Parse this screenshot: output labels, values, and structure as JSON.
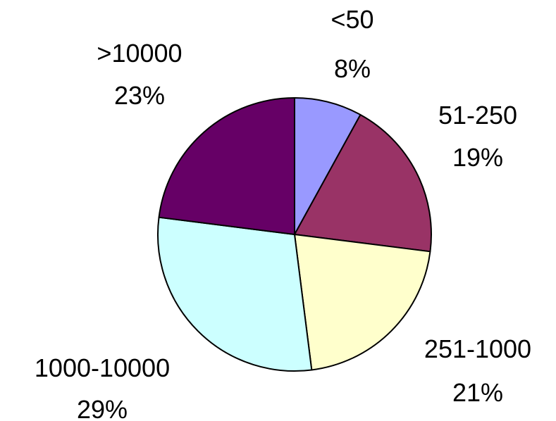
{
  "chart_data": {
    "type": "pie",
    "title": "",
    "slices": [
      {
        "category": "<50",
        "percent_label": "8%",
        "value": 8,
        "color": "#9999ff"
      },
      {
        "category": "51-250",
        "percent_label": "19%",
        "value": 19,
        "color": "#993366"
      },
      {
        "category": "251-1000",
        "percent_label": "21%",
        "value": 21,
        "color": "#ffffcc"
      },
      {
        "category": "1000-10000",
        "percent_label": "29%",
        "value": 29,
        "color": "#ccffff"
      },
      {
        "category": ">10000",
        "percent_label": "23%",
        "value": 23,
        "color": "#660066"
      }
    ],
    "start_angle": "12 o'clock",
    "direction": "clockwise",
    "legend": "none",
    "labels": "outside"
  }
}
